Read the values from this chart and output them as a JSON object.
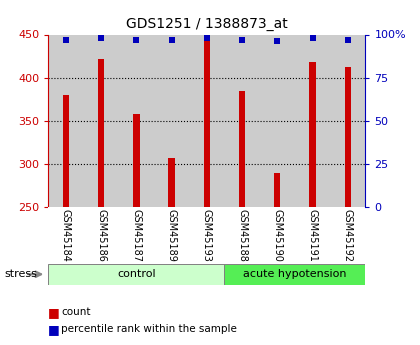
{
  "title": "GDS1251 / 1388873_at",
  "samples": [
    "GSM45184",
    "GSM45186",
    "GSM45187",
    "GSM45189",
    "GSM45193",
    "GSM45188",
    "GSM45190",
    "GSM45191",
    "GSM45192"
  ],
  "counts": [
    380,
    422,
    358,
    307,
    447,
    384,
    290,
    418,
    412
  ],
  "percentiles": [
    97,
    98,
    97,
    97,
    98,
    97,
    96,
    98,
    97
  ],
  "ylim_left": [
    250,
    450
  ],
  "ylim_right": [
    0,
    100
  ],
  "yticks_left": [
    250,
    300,
    350,
    400,
    450
  ],
  "yticks_right": [
    0,
    25,
    50,
    75,
    100
  ],
  "ytick_labels_right": [
    "0",
    "25",
    "50",
    "75",
    "100%"
  ],
  "bar_color": "#cc0000",
  "dot_color": "#0000bb",
  "bar_bottom": 250,
  "groups": [
    {
      "label": "control",
      "start": 0,
      "end": 5,
      "color": "#ccffcc"
    },
    {
      "label": "acute hypotension",
      "start": 5,
      "end": 9,
      "color": "#55ee55"
    }
  ],
  "stress_label": "stress",
  "legend_items": [
    {
      "label": "count",
      "color": "#cc0000"
    },
    {
      "label": "percentile rank within the sample",
      "color": "#0000bb"
    }
  ],
  "grid_color": "#000000",
  "background_xtick": "#cccccc",
  "bar_width": 0.18
}
